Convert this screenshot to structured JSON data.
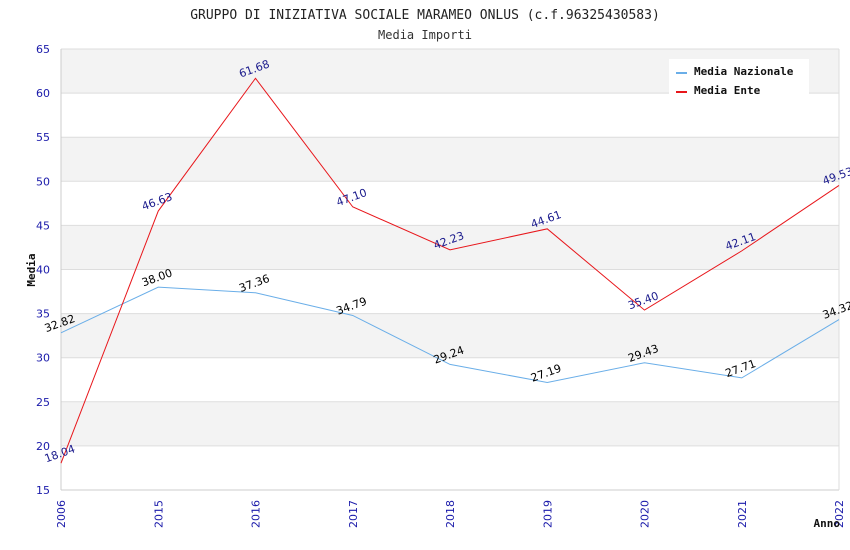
{
  "chart_data": {
    "type": "line",
    "title": "GRUPPO DI INIZIATIVA SOCIALE MARAMEO ONLUS (c.f.96325430583)",
    "subtitle": "Media Importi",
    "xlabel": "Anno",
    "ylabel": "Media",
    "categories": [
      "2006",
      "2015",
      "2016",
      "2017",
      "2018",
      "2019",
      "2020",
      "2021",
      "2022"
    ],
    "ylim": [
      15,
      65
    ],
    "yticks": [
      15,
      20,
      25,
      30,
      35,
      40,
      45,
      50,
      55,
      60,
      65
    ],
    "grid": true,
    "legend_position": "top-right",
    "series": [
      {
        "name": "Media Nazionale",
        "color": "#6aaee8",
        "label_color": "#000000",
        "values": [
          32.82,
          38.0,
          37.36,
          34.79,
          29.24,
          27.19,
          29.43,
          27.71,
          34.32
        ],
        "labels": [
          "32.82",
          "38.00",
          "37.36",
          "34.79",
          "29.24",
          "27.19",
          "29.43",
          "27.71",
          "34.32"
        ]
      },
      {
        "name": "Media Ente",
        "color": "#e8161b",
        "label_color": "#1a1a8c",
        "values": [
          18.04,
          46.63,
          61.68,
          47.1,
          42.23,
          44.61,
          35.4,
          42.11,
          49.53
        ],
        "labels": [
          "18.04",
          "46.63",
          "61.68",
          "47.10",
          "42.23",
          "44.61",
          "35.40",
          "42.11",
          "49.53"
        ]
      }
    ]
  }
}
